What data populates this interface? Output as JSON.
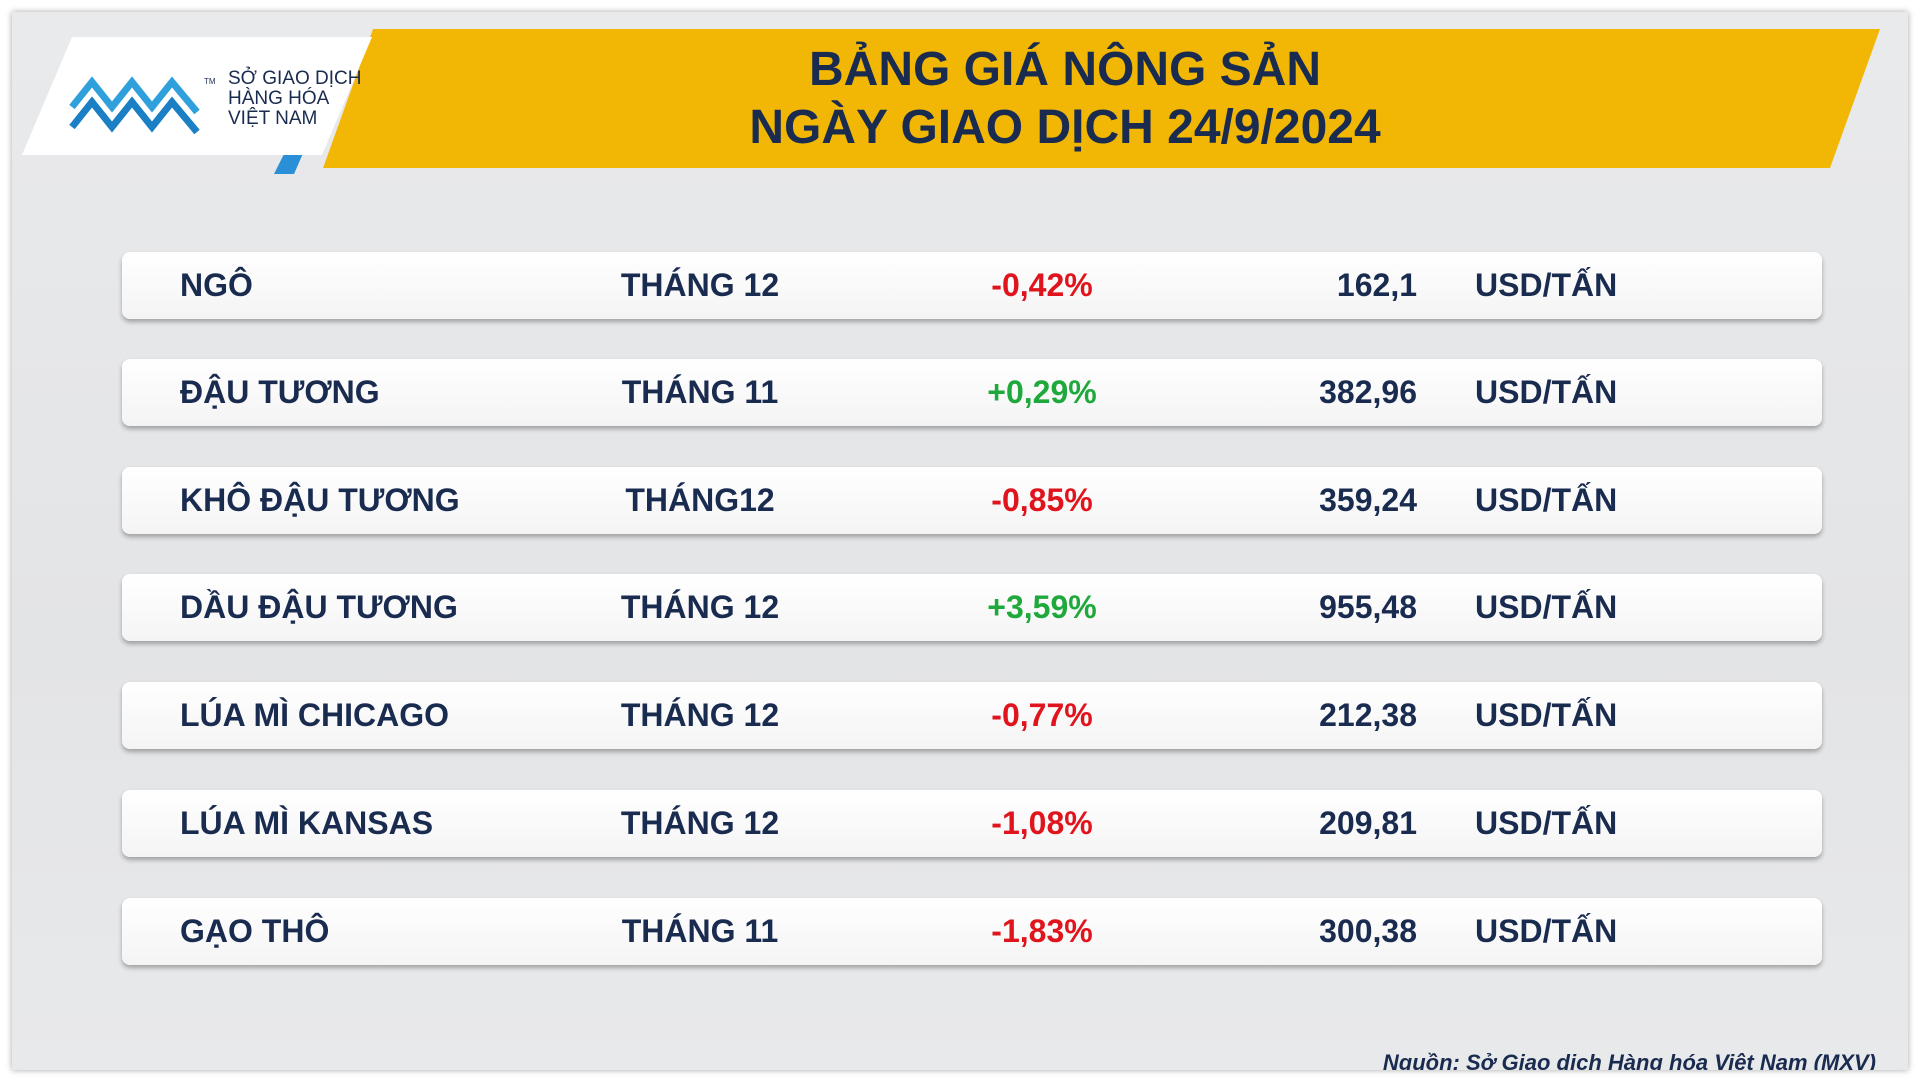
{
  "logo": {
    "lines": [
      "SỞ GIAO DỊCH",
      "HÀNG HÓA",
      "VIỆT NAM"
    ],
    "trademark": "TM"
  },
  "header": {
    "title": [
      "BẢNG GIÁ NÔNG SẢN",
      "NGÀY GIAO DỊCH 24/9/2024"
    ]
  },
  "table": {
    "rows": [
      {
        "name": "NGÔ",
        "month": "THÁNG 12",
        "change": "-0,42%",
        "change_color": "#e0141c",
        "price": "162,1",
        "unit": "USD/TẤN"
      },
      {
        "name": "ĐẬU TƯƠNG",
        "month": "THÁNG 11",
        "change": "+0,29%",
        "change_color": "#1fa83c",
        "price": "382,96",
        "unit": "USD/TẤN"
      },
      {
        "name": "KHÔ ĐẬU TƯƠNG",
        "month": "THÁNG12",
        "change": "-0,85%",
        "change_color": "#e0141c",
        "price": "359,24",
        "unit": "USD/TẤN"
      },
      {
        "name": "DẦU ĐẬU TƯƠNG",
        "month": "THÁNG 12",
        "change": "+3,59%",
        "change_color": "#1fa83c",
        "price": "955,48",
        "unit": "USD/TẤN"
      },
      {
        "name": "LÚA MÌ CHICAGO",
        "month": "THÁNG 12",
        "change": "-0,77%",
        "change_color": "#e0141c",
        "price": "212,38",
        "unit": "USD/TẤN"
      },
      {
        "name": "LÚA MÌ KANSAS",
        "month": "THÁNG 12",
        "change": "-1,08%",
        "change_color": "#e0141c",
        "price": "209,81",
        "unit": "USD/TẤN"
      },
      {
        "name": "GẠO THÔ",
        "month": "THÁNG 11",
        "change": "-1,83%",
        "change_color": "#e0141c",
        "price": "300,38",
        "unit": "USD/TẤN"
      }
    ]
  },
  "source": "Nguồn: Sở Giao dịch Hàng hóa Việt Nam (MXV)"
}
